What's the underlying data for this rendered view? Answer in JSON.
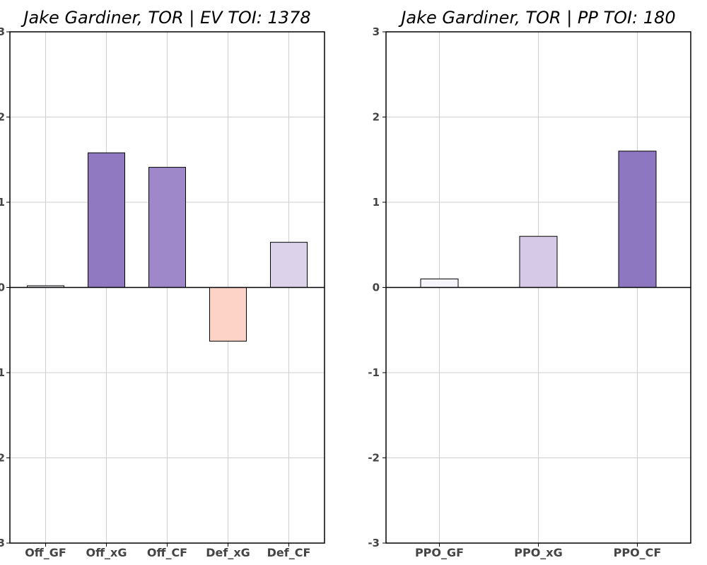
{
  "chart_data": [
    {
      "type": "bar",
      "title": "Jake Gardiner, TOR  |  EV TOI: 1378",
      "categories": [
        "Off_GF",
        "Off_xG",
        "Off_CF",
        "Def_xG",
        "Def_CF"
      ],
      "values": [
        0.02,
        1.58,
        1.41,
        -0.63,
        0.53
      ],
      "colors": [
        "#f3f1f8",
        "#9079c1",
        "#9e88c9",
        "#fdd3c7",
        "#dcd3ea"
      ],
      "ylim": [
        -3,
        3
      ],
      "yticks": [
        "-3",
        "-2",
        "-1",
        "0",
        "1",
        "2",
        "3"
      ],
      "xlabel": "",
      "ylabel": "",
      "grid": true
    },
    {
      "type": "bar",
      "title": "Jake Gardiner, TOR  |  PP TOI: 180",
      "categories": [
        "PPO_GF",
        "PPO_xG",
        "PPO_CF"
      ],
      "values": [
        0.1,
        0.6,
        1.6
      ],
      "colors": [
        "#f6f5fa",
        "#d6c9e8",
        "#8e77c1"
      ],
      "ylim": [
        -3,
        3
      ],
      "yticks": [
        "-3",
        "-2",
        "-1",
        "0",
        "1",
        "2",
        "3"
      ],
      "xlabel": "",
      "ylabel": "",
      "grid": true
    }
  ]
}
